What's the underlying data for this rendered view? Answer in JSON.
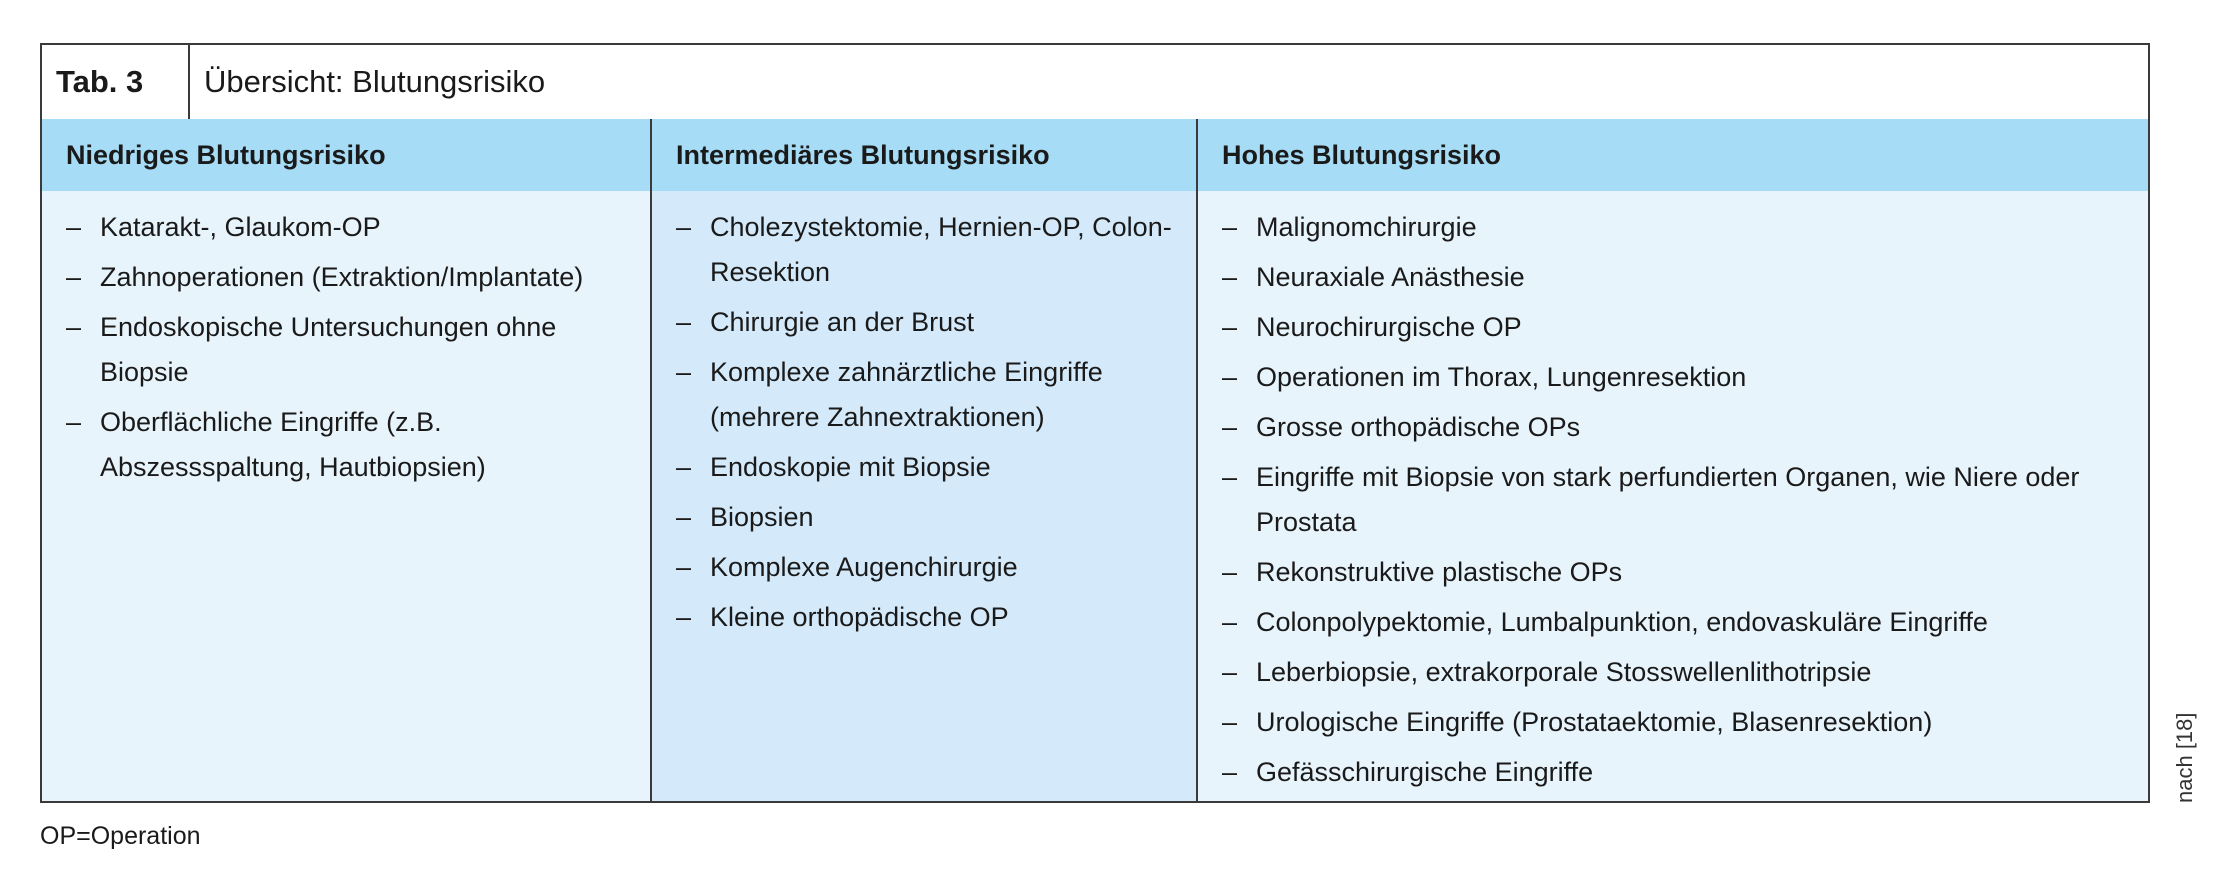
{
  "table": {
    "label": "Tab. 3",
    "title": "Übersicht: Blutungsrisiko",
    "list_marker": "–",
    "columns": [
      {
        "header": "Niedriges Blutungsrisiko",
        "items": [
          "Katarakt-, Glaukom-OP",
          "Zahnoperationen (Extraktion/Implantate)",
          "Endoskopische Untersuchungen ohne Biopsie",
          "Oberflächliche Eingriffe (z.B. Abszessspaltung, Hautbiopsien)"
        ]
      },
      {
        "header": "Intermediäres Blutungsrisiko",
        "items": [
          "Cholezystektomie, Hernien-OP, Colon-Resektion",
          "Chirurgie an der Brust",
          "Komplexe zahnärztliche Eingriffe (mehrere Zahnextraktionen)",
          "Endoskopie mit Biopsie",
          "Biopsien",
          "Komplexe Augenchirurgie",
          "Kleine orthopädische OP"
        ]
      },
      {
        "header": "Hohes Blutungsrisiko",
        "items": [
          "Malignomchirurgie",
          "Neuraxiale Anästhesie",
          "Neurochirurgische OP",
          "Operationen im Thorax, Lungenresektion",
          "Grosse orthopädische OPs",
          "Eingriffe mit Biopsie von stark perfundierten Organen, wie Niere oder Prostata",
          "Rekonstruktive plastische OPs",
          "Colonpolypektomie, Lumbalpunktion, endovaskuläre Eingriffe",
          "Leberbiopsie, extrakorporale Stosswellenlithotripsie",
          "Urologische Eingriffe (Prostataektomie, Blasenresektion)",
          "Gefässchirurgische Eingriffe"
        ]
      }
    ]
  },
  "footnote": "OP=Operation",
  "source": "nach [18]",
  "colors": {
    "header_bg": "#a6dcf5",
    "cell_light": "#e8f4fc",
    "cell_mid": "#d4eafa",
    "border": "#3a3a3a"
  }
}
